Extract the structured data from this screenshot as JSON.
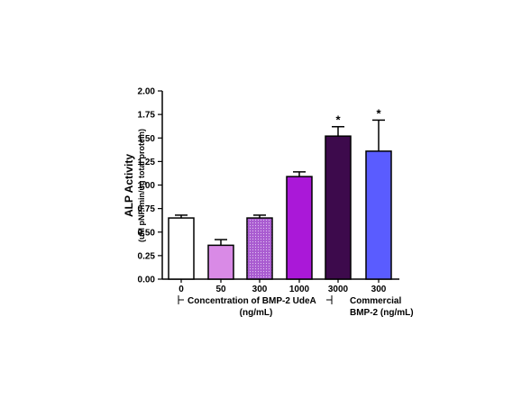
{
  "chart_data": {
    "type": "bar",
    "title": "",
    "ylabel": "ALP Activity",
    "ylabel_sub": "(uM pNP/min/ug total protein)",
    "ylim": [
      0,
      2.0
    ],
    "yticks": [
      "0.00",
      "0.25",
      "0.50",
      "0.75",
      "1.00",
      "1.25",
      "1.50",
      "1.75",
      "2.00"
    ],
    "categories": [
      "0",
      "50",
      "300",
      "1000",
      "3000",
      "300"
    ],
    "values": [
      0.65,
      0.36,
      0.65,
      1.09,
      1.52,
      1.36
    ],
    "errors": [
      0.03,
      0.06,
      0.03,
      0.05,
      0.1,
      0.33
    ],
    "significance": [
      "",
      "",
      "",
      "",
      "*",
      "*"
    ],
    "bar_colors": [
      "#ffffff",
      "#d98ae6",
      "#a95bd0",
      "#aa18d8",
      "#3d0a4c",
      "#5a5cff"
    ],
    "group_labels": {
      "udea_line1": "Concentration of BMP-2 UdeA",
      "udea_line2": "(ng/mL)",
      "commercial_line1": "Commercial",
      "commercial_line2": "BMP-2 (ng/mL)"
    },
    "grid": false
  }
}
